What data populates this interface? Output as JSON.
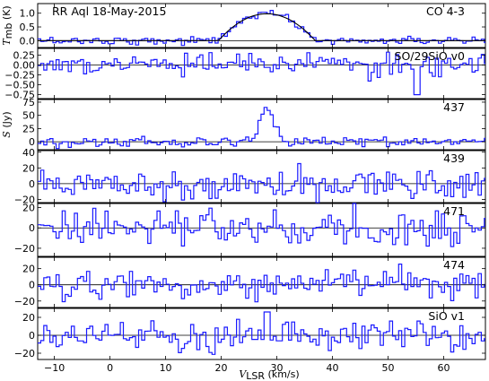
{
  "chart_data": {
    "type": "line",
    "title": "RR Aql  18-May-2015",
    "xlabel": "V",
    "xlabel_sub": "LSR",
    "xlabel_unit": "(km/s)",
    "xlim": [
      -13,
      67.5
    ],
    "xticks": [
      -10,
      0,
      10,
      20,
      30,
      40,
      50,
      60
    ],
    "panels": [
      {
        "label": "CO 4-3",
        "ylabel": "T",
        "ylabel_sub": "mb",
        "ylabel_unit": "(K)",
        "ylim": [
          -0.25,
          1.35
        ],
        "yticks": [
          0.0,
          0.5,
          1.0
        ],
        "ytick_labels": [
          "0.0",
          "0.5",
          "1.0"
        ],
        "noise": 0.07,
        "line": {
          "center": 28.2,
          "half_width": 8.7,
          "peak": 0.98,
          "shape": "parabola"
        },
        "fit": {
          "center": 28.2,
          "half_width": 8.7,
          "peak": 0.98
        }
      },
      {
        "label": "SO/29SiO v0",
        "ylabel": "",
        "ylim": [
          -0.85,
          0.42
        ],
        "yticks": [
          -0.75,
          -0.5,
          -0.25,
          0.0,
          0.25
        ],
        "ytick_labels": [
          "−0.75",
          "−0.50",
          "−0.25",
          "0.00",
          "0.25"
        ],
        "noise": 0.13,
        "features": [
          {
            "x": 55.3,
            "y": -0.75
          }
        ]
      },
      {
        "label": "437",
        "ylabel": "S",
        "ylabel_unit": "(Jy)",
        "ylim": [
          -15,
          80
        ],
        "yticks": [
          0,
          25,
          50,
          75
        ],
        "ytick_labels": [
          "0",
          "25",
          "50",
          "75"
        ],
        "noise": 4.5,
        "line": {
          "center": 28.2,
          "half_width": 1.2,
          "peak": 62,
          "shape": "gauss"
        }
      },
      {
        "label": "439",
        "ylabel": "",
        "ylim": [
          -24,
          42
        ],
        "yticks": [
          -20,
          0,
          20,
          40
        ],
        "ytick_labels": [
          "−20",
          "0",
          "20",
          "40"
        ],
        "noise": 10
      },
      {
        "label": "471",
        "ylabel": "",
        "ylim": [
          -28,
          24
        ],
        "yticks": [
          -20,
          0,
          20
        ],
        "ytick_labels": [
          "−20",
          "0",
          "20"
        ],
        "noise": 9
      },
      {
        "label": "474",
        "ylabel": "",
        "ylim": [
          -28,
          34
        ],
        "yticks": [
          -20,
          0,
          20
        ],
        "ytick_labels": [
          "−20",
          "0",
          "20"
        ],
        "noise": 9
      },
      {
        "label": "SiO v1",
        "ylabel": "",
        "ylim": [
          -27,
          30
        ],
        "yticks": [
          -20,
          0,
          20
        ],
        "ytick_labels": [
          "−20",
          "0",
          "20"
        ],
        "noise": 8,
        "features": [
          {
            "x": 28.2,
            "y": 26
          }
        ]
      }
    ]
  },
  "colors": {
    "spectrum": "#1a1aff",
    "fit": "#000000",
    "axes": "#000000"
  }
}
